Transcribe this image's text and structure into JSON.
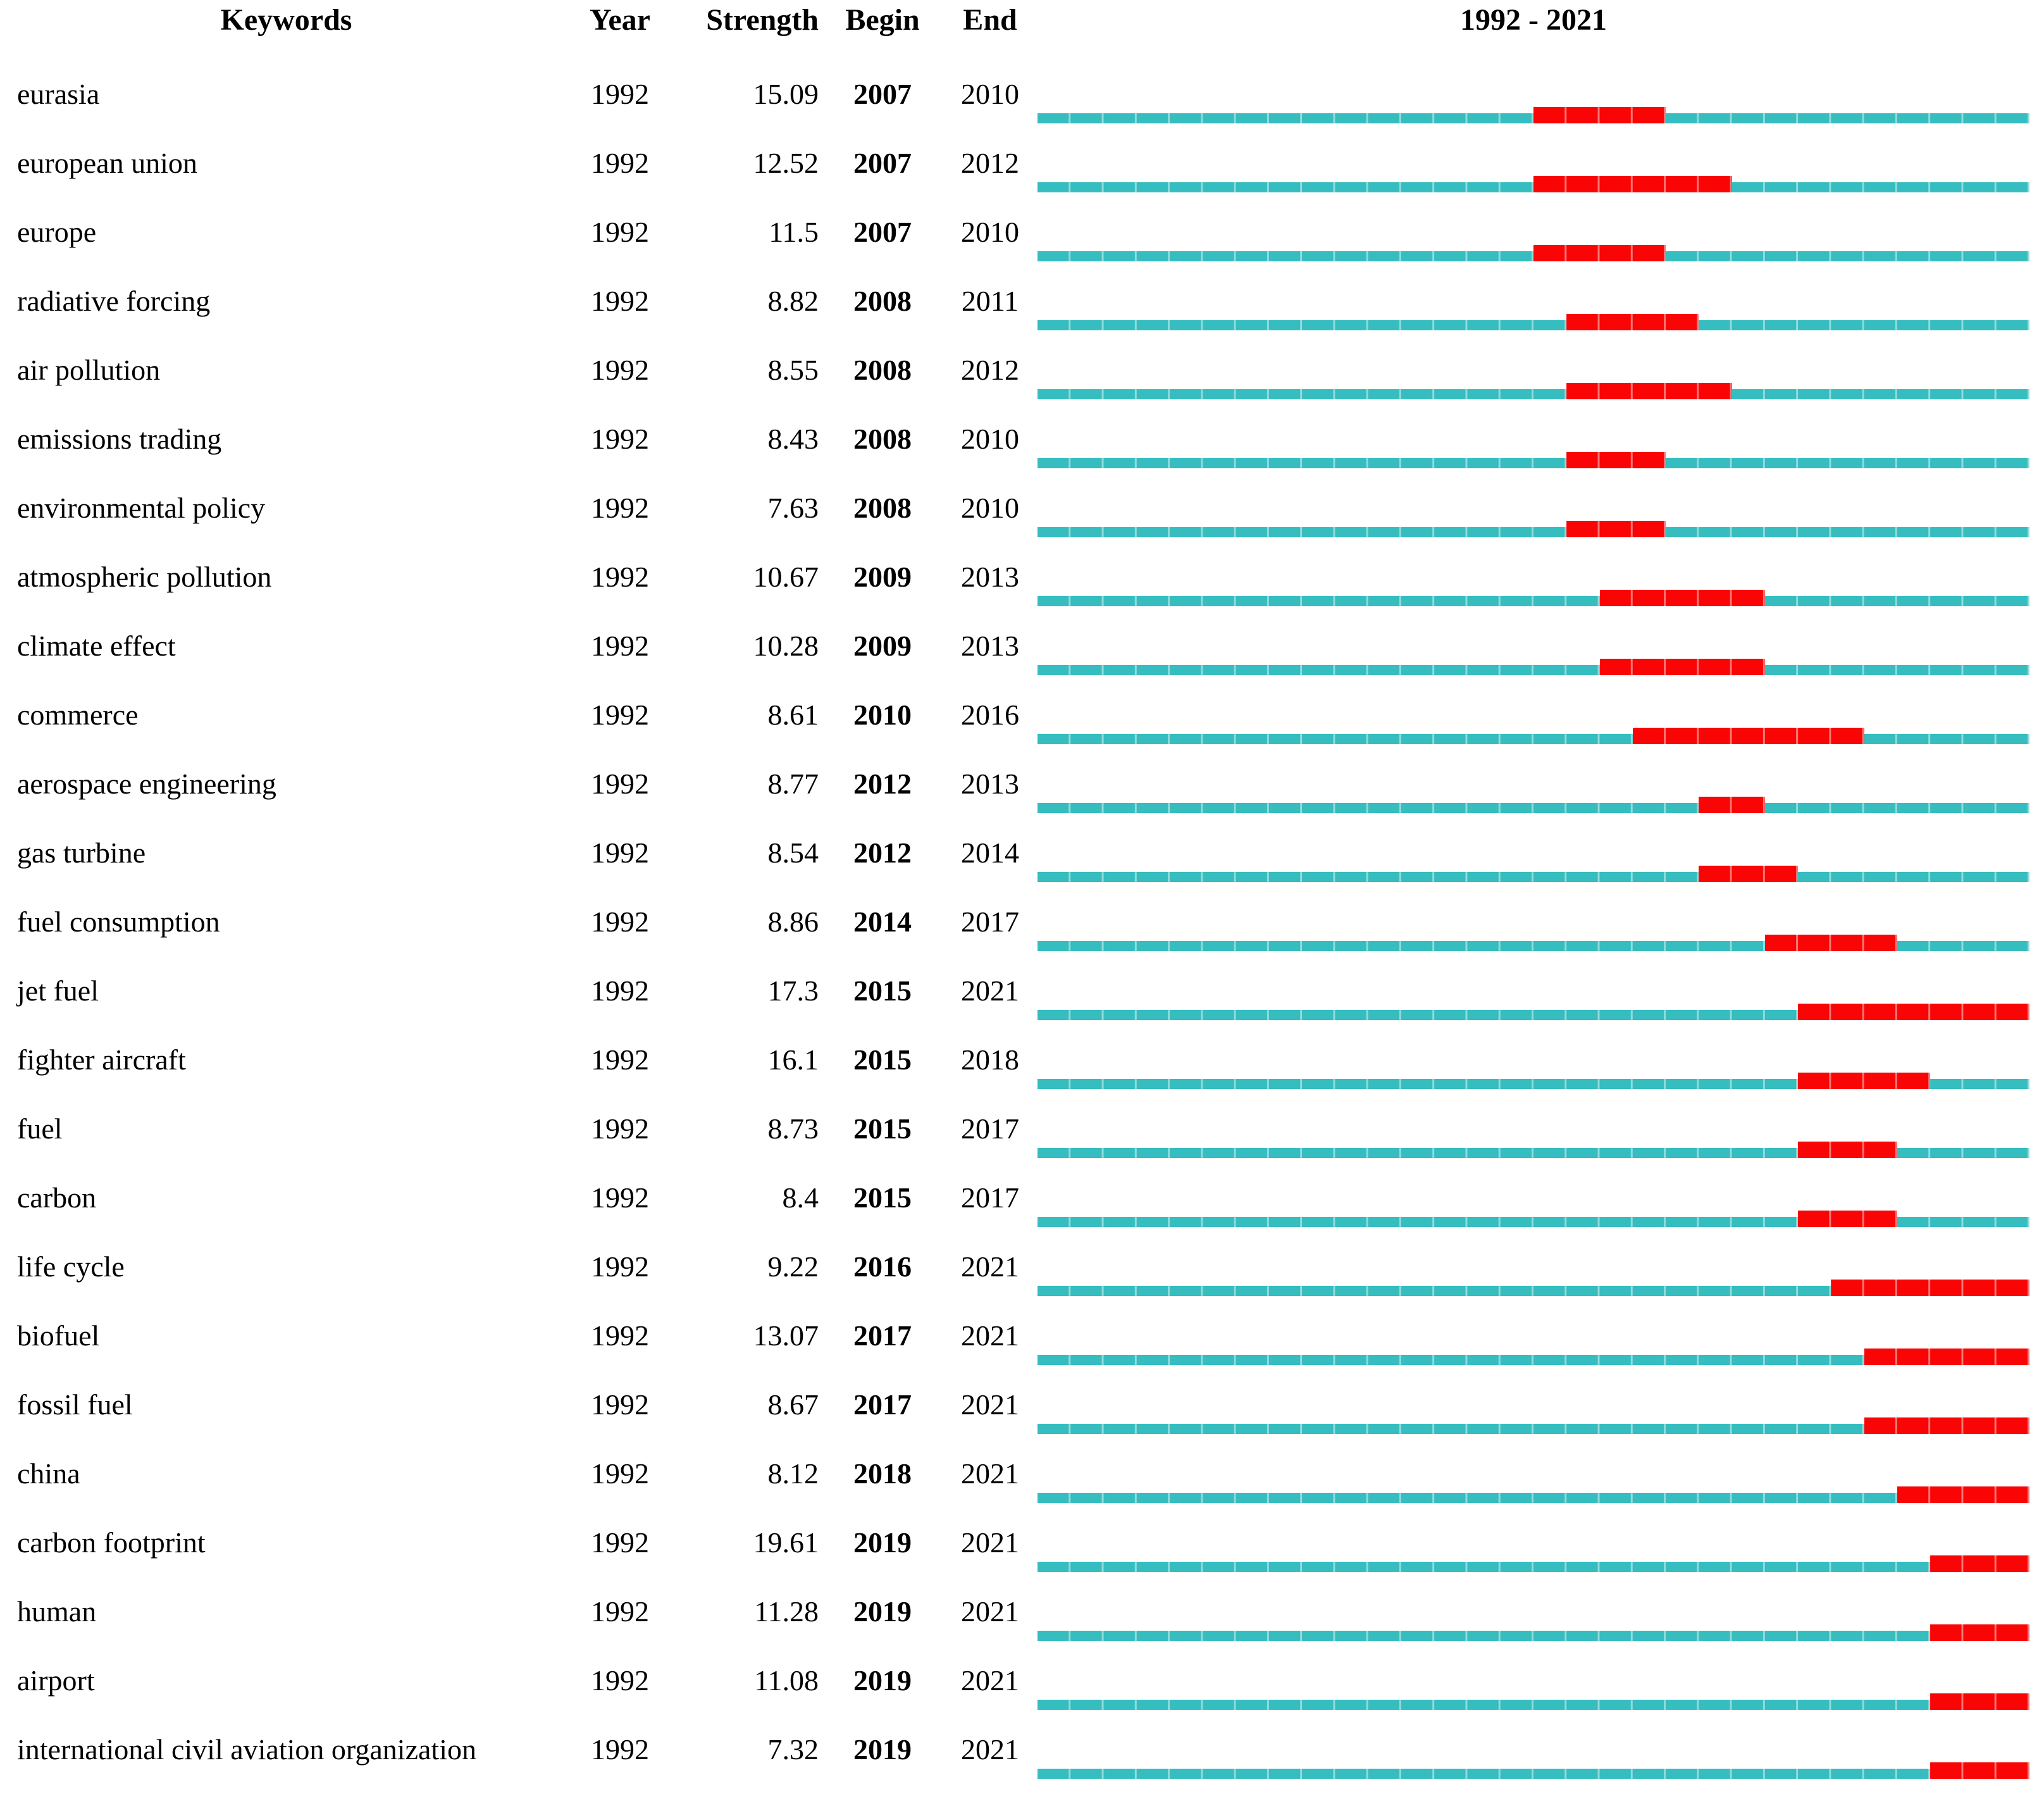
{
  "header": {
    "keywords": "Keywords",
    "year": "Year",
    "strength": "Strength",
    "begin": "Begin",
    "end": "End",
    "timeline_title": "1992 - 2021"
  },
  "colors": {
    "track_teal": "#35bdbf",
    "burst_red": "#f90505"
  },
  "chart_data": {
    "type": "table",
    "title": "1992 - 2021",
    "columns": [
      "Keywords",
      "Year",
      "Strength",
      "Begin",
      "End"
    ],
    "timeline_range": [
      1992,
      2021
    ],
    "legend": {
      "track_color_meaning": "full interval 1992-2021",
      "burst_color_meaning": "burst duration Begin-End"
    },
    "rows": [
      {
        "keyword": "eurasia",
        "year": 1992,
        "strength": "15.09",
        "begin": 2007,
        "end": 2010
      },
      {
        "keyword": "european union",
        "year": 1992,
        "strength": "12.52",
        "begin": 2007,
        "end": 2012
      },
      {
        "keyword": "europe",
        "year": 1992,
        "strength": "11.5",
        "begin": 2007,
        "end": 2010
      },
      {
        "keyword": "radiative forcing",
        "year": 1992,
        "strength": "8.82",
        "begin": 2008,
        "end": 2011
      },
      {
        "keyword": "air pollution",
        "year": 1992,
        "strength": "8.55",
        "begin": 2008,
        "end": 2012
      },
      {
        "keyword": "emissions trading",
        "year": 1992,
        "strength": "8.43",
        "begin": 2008,
        "end": 2010
      },
      {
        "keyword": "environmental policy",
        "year": 1992,
        "strength": "7.63",
        "begin": 2008,
        "end": 2010
      },
      {
        "keyword": "atmospheric pollution",
        "year": 1992,
        "strength": "10.67",
        "begin": 2009,
        "end": 2013
      },
      {
        "keyword": "climate effect",
        "year": 1992,
        "strength": "10.28",
        "begin": 2009,
        "end": 2013
      },
      {
        "keyword": "commerce",
        "year": 1992,
        "strength": "8.61",
        "begin": 2010,
        "end": 2016
      },
      {
        "keyword": "aerospace engineering",
        "year": 1992,
        "strength": "8.77",
        "begin": 2012,
        "end": 2013
      },
      {
        "keyword": "gas turbine",
        "year": 1992,
        "strength": "8.54",
        "begin": 2012,
        "end": 2014
      },
      {
        "keyword": "fuel consumption",
        "year": 1992,
        "strength": "8.86",
        "begin": 2014,
        "end": 2017
      },
      {
        "keyword": "jet fuel",
        "year": 1992,
        "strength": "17.3",
        "begin": 2015,
        "end": 2021
      },
      {
        "keyword": "fighter aircraft",
        "year": 1992,
        "strength": "16.1",
        "begin": 2015,
        "end": 2018
      },
      {
        "keyword": "fuel",
        "year": 1992,
        "strength": "8.73",
        "begin": 2015,
        "end": 2017
      },
      {
        "keyword": "carbon",
        "year": 1992,
        "strength": "8.4",
        "begin": 2015,
        "end": 2017
      },
      {
        "keyword": "life cycle",
        "year": 1992,
        "strength": "9.22",
        "begin": 2016,
        "end": 2021
      },
      {
        "keyword": "biofuel",
        "year": 1992,
        "strength": "13.07",
        "begin": 2017,
        "end": 2021
      },
      {
        "keyword": "fossil fuel",
        "year": 1992,
        "strength": "8.67",
        "begin": 2017,
        "end": 2021
      },
      {
        "keyword": "china",
        "year": 1992,
        "strength": "8.12",
        "begin": 2018,
        "end": 2021
      },
      {
        "keyword": "carbon footprint",
        "year": 1992,
        "strength": "19.61",
        "begin": 2019,
        "end": 2021
      },
      {
        "keyword": "human",
        "year": 1992,
        "strength": "11.28",
        "begin": 2019,
        "end": 2021
      },
      {
        "keyword": "airport",
        "year": 1992,
        "strength": "11.08",
        "begin": 2019,
        "end": 2021
      },
      {
        "keyword": "international civil aviation organization",
        "year": 1992,
        "strength": "7.32",
        "begin": 2019,
        "end": 2021
      }
    ]
  }
}
